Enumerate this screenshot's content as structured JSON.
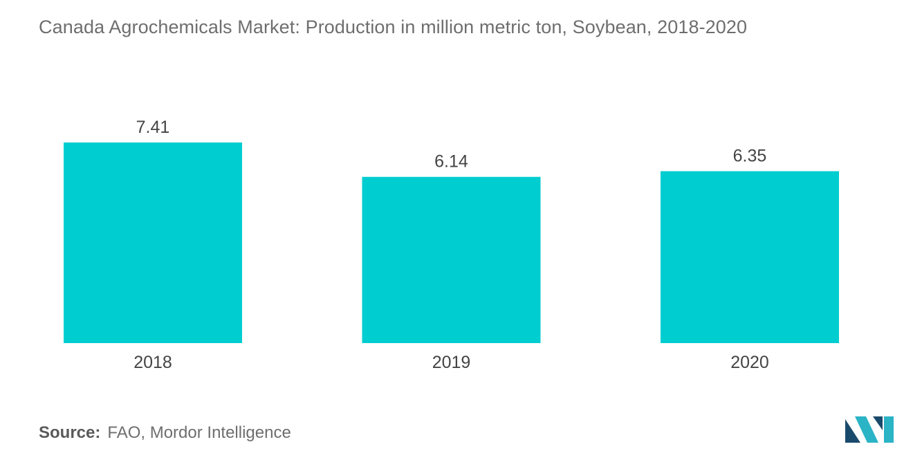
{
  "title": "Canada Agrochemicals Market: Production in million metric ton, Soybean, 2018-2020",
  "source": {
    "label": "Source:",
    "text": "FAO, Mordor Intelligence"
  },
  "logo_icon": "mordor-intelligence-logo-icon",
  "colors": {
    "bar": "#00cdd0",
    "logo_dark": "#1a4a6b",
    "logo_light": "#2ab4c6"
  },
  "chart_data": {
    "type": "bar",
    "title": "Canada Agrochemicals Market: Production in million metric ton, Soybean, 2018-2020",
    "categories": [
      "2018",
      "2019",
      "2020"
    ],
    "values": [
      7.41,
      6.14,
      6.35
    ],
    "value_labels": [
      "7.41",
      "6.14",
      "6.35"
    ],
    "xlabel": "",
    "ylabel": "",
    "ylim": [
      0,
      7.41
    ],
    "grid": false,
    "legend": "none"
  }
}
